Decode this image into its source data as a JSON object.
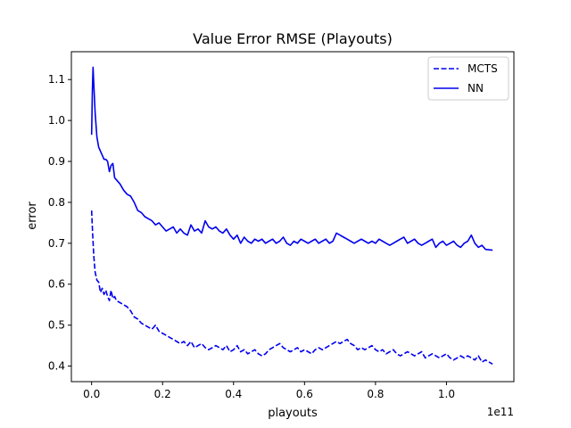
{
  "chart_data": {
    "type": "line",
    "title": "Value Error RMSE (Playouts)",
    "xlabel": "playouts",
    "ylabel": "error",
    "x_offset_label": "1e11",
    "xlim": [
      -0.057,
      1.19
    ],
    "ylim": [
      0.362,
      1.168
    ],
    "xticks": [
      0.0,
      0.2,
      0.4,
      0.6,
      0.8,
      1.0
    ],
    "xtick_labels": [
      "0.0",
      "0.2",
      "0.4",
      "0.6",
      "0.8",
      "1.0"
    ],
    "yticks": [
      0.4,
      0.5,
      0.6,
      0.7,
      0.8,
      0.9,
      1.0,
      1.1
    ],
    "ytick_labels": [
      "0.4",
      "0.5",
      "0.6",
      "0.7",
      "0.8",
      "0.9",
      "1.0",
      "1.1"
    ],
    "grid": false,
    "legend_position": "top-right",
    "colors": {
      "series": "#0000ee",
      "axes": "#000000"
    },
    "series": [
      {
        "name": "MCTS",
        "style": "dashed",
        "x": [
          0.0,
          0.003,
          0.006,
          0.01,
          0.015,
          0.02,
          0.025,
          0.03,
          0.035,
          0.04,
          0.045,
          0.05,
          0.055,
          0.06,
          0.065,
          0.07,
          0.08,
          0.09,
          0.1,
          0.11,
          0.12,
          0.13,
          0.14,
          0.15,
          0.16,
          0.17,
          0.18,
          0.19,
          0.2,
          0.21,
          0.22,
          0.23,
          0.24,
          0.25,
          0.26,
          0.27,
          0.28,
          0.29,
          0.3,
          0.31,
          0.32,
          0.33,
          0.34,
          0.35,
          0.36,
          0.37,
          0.38,
          0.39,
          0.4,
          0.41,
          0.42,
          0.43,
          0.44,
          0.45,
          0.46,
          0.47,
          0.48,
          0.49,
          0.5,
          0.51,
          0.52,
          0.53,
          0.54,
          0.55,
          0.56,
          0.57,
          0.58,
          0.59,
          0.6,
          0.61,
          0.62,
          0.63,
          0.64,
          0.65,
          0.66,
          0.67,
          0.68,
          0.69,
          0.7,
          0.71,
          0.72,
          0.73,
          0.74,
          0.75,
          0.76,
          0.77,
          0.78,
          0.79,
          0.8,
          0.81,
          0.82,
          0.83,
          0.84,
          0.85,
          0.86,
          0.87,
          0.88,
          0.89,
          0.9,
          0.91,
          0.92,
          0.93,
          0.94,
          0.95,
          0.96,
          0.97,
          0.98,
          0.99,
          1.0,
          1.01,
          1.02,
          1.03,
          1.04,
          1.05,
          1.06,
          1.07,
          1.08,
          1.09,
          1.1,
          1.11,
          1.13
        ],
        "y": [
          0.78,
          0.72,
          0.67,
          0.63,
          0.61,
          0.605,
          0.58,
          0.59,
          0.575,
          0.585,
          0.57,
          0.56,
          0.585,
          0.565,
          0.57,
          0.56,
          0.555,
          0.55,
          0.545,
          0.535,
          0.52,
          0.515,
          0.505,
          0.5,
          0.495,
          0.49,
          0.5,
          0.485,
          0.48,
          0.475,
          0.47,
          0.465,
          0.46,
          0.455,
          0.46,
          0.45,
          0.46,
          0.445,
          0.45,
          0.455,
          0.445,
          0.44,
          0.445,
          0.45,
          0.445,
          0.44,
          0.45,
          0.435,
          0.44,
          0.45,
          0.435,
          0.44,
          0.43,
          0.435,
          0.44,
          0.43,
          0.425,
          0.43,
          0.44,
          0.445,
          0.45,
          0.455,
          0.445,
          0.44,
          0.435,
          0.44,
          0.445,
          0.435,
          0.44,
          0.435,
          0.43,
          0.44,
          0.445,
          0.44,
          0.445,
          0.45,
          0.455,
          0.46,
          0.455,
          0.46,
          0.465,
          0.455,
          0.45,
          0.44,
          0.445,
          0.44,
          0.445,
          0.45,
          0.44,
          0.435,
          0.44,
          0.43,
          0.435,
          0.44,
          0.43,
          0.425,
          0.43,
          0.435,
          0.43,
          0.425,
          0.43,
          0.435,
          0.42,
          0.425,
          0.43,
          0.425,
          0.42,
          0.425,
          0.43,
          0.42,
          0.415,
          0.42,
          0.425,
          0.42,
          0.425,
          0.42,
          0.415,
          0.425,
          0.41,
          0.415,
          0.405
        ]
      },
      {
        "name": "NN",
        "style": "solid",
        "x": [
          0.0,
          0.002,
          0.004,
          0.006,
          0.01,
          0.015,
          0.02,
          0.025,
          0.03,
          0.035,
          0.04,
          0.045,
          0.05,
          0.055,
          0.06,
          0.065,
          0.07,
          0.08,
          0.09,
          0.1,
          0.11,
          0.12,
          0.13,
          0.14,
          0.15,
          0.16,
          0.17,
          0.18,
          0.19,
          0.2,
          0.21,
          0.22,
          0.23,
          0.24,
          0.25,
          0.26,
          0.27,
          0.28,
          0.29,
          0.3,
          0.31,
          0.32,
          0.33,
          0.34,
          0.35,
          0.36,
          0.37,
          0.38,
          0.39,
          0.4,
          0.41,
          0.42,
          0.43,
          0.44,
          0.45,
          0.46,
          0.47,
          0.48,
          0.49,
          0.5,
          0.51,
          0.52,
          0.53,
          0.54,
          0.55,
          0.56,
          0.57,
          0.58,
          0.59,
          0.6,
          0.61,
          0.62,
          0.63,
          0.64,
          0.65,
          0.66,
          0.67,
          0.68,
          0.69,
          0.7,
          0.71,
          0.72,
          0.73,
          0.74,
          0.75,
          0.76,
          0.77,
          0.78,
          0.79,
          0.8,
          0.81,
          0.82,
          0.83,
          0.84,
          0.85,
          0.86,
          0.87,
          0.88,
          0.89,
          0.9,
          0.91,
          0.92,
          0.93,
          0.94,
          0.95,
          0.96,
          0.97,
          0.98,
          0.99,
          1.0,
          1.01,
          1.02,
          1.03,
          1.04,
          1.05,
          1.06,
          1.07,
          1.08,
          1.09,
          1.1,
          1.11,
          1.13
        ],
        "y": [
          0.965,
          1.07,
          1.13,
          1.09,
          1.02,
          0.96,
          0.935,
          0.925,
          0.915,
          0.905,
          0.905,
          0.9,
          0.875,
          0.89,
          0.895,
          0.86,
          0.855,
          0.845,
          0.83,
          0.82,
          0.815,
          0.8,
          0.78,
          0.775,
          0.765,
          0.76,
          0.755,
          0.745,
          0.75,
          0.74,
          0.73,
          0.735,
          0.74,
          0.725,
          0.735,
          0.725,
          0.72,
          0.745,
          0.73,
          0.735,
          0.725,
          0.755,
          0.74,
          0.735,
          0.74,
          0.73,
          0.725,
          0.735,
          0.72,
          0.71,
          0.72,
          0.7,
          0.715,
          0.705,
          0.7,
          0.71,
          0.705,
          0.71,
          0.7,
          0.705,
          0.71,
          0.7,
          0.705,
          0.715,
          0.7,
          0.695,
          0.705,
          0.7,
          0.71,
          0.705,
          0.7,
          0.705,
          0.71,
          0.7,
          0.705,
          0.71,
          0.7,
          0.705,
          0.725,
          0.72,
          0.715,
          0.71,
          0.705,
          0.7,
          0.705,
          0.71,
          0.705,
          0.7,
          0.705,
          0.7,
          0.71,
          0.705,
          0.7,
          0.695,
          0.7,
          0.705,
          0.71,
          0.715,
          0.7,
          0.705,
          0.71,
          0.7,
          0.695,
          0.7,
          0.705,
          0.71,
          0.69,
          0.7,
          0.705,
          0.695,
          0.7,
          0.705,
          0.695,
          0.69,
          0.7,
          0.705,
          0.72,
          0.7,
          0.69,
          0.695,
          0.685,
          0.683
        ]
      }
    ]
  }
}
